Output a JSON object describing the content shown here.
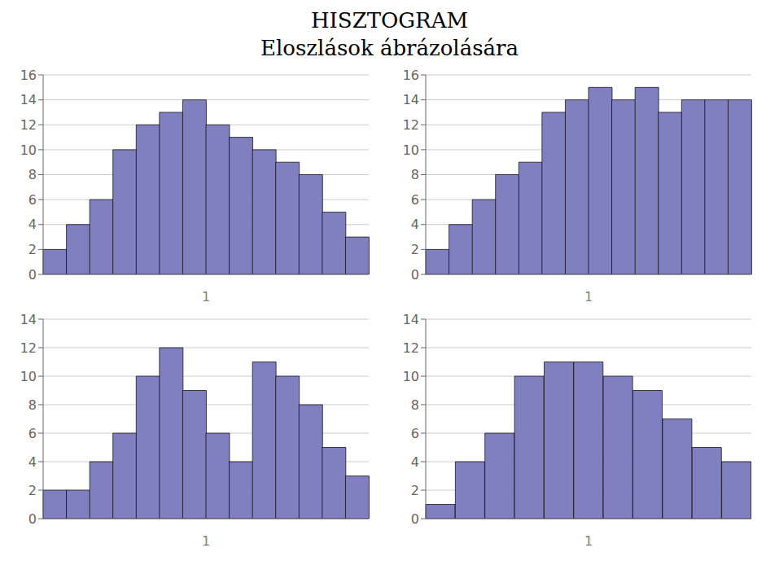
{
  "title": "HISZTOGRAM",
  "subtitle": "Eloszlások ábrázolására",
  "chart_data": [
    {
      "type": "bar",
      "categories": [
        null,
        null,
        null,
        null,
        null,
        null,
        null,
        null,
        null,
        null,
        null,
        null,
        null,
        null
      ],
      "values": [
        2,
        4,
        6,
        10,
        12,
        13,
        14,
        12,
        11,
        10,
        9,
        8,
        5,
        3
      ],
      "xlabel": "1",
      "color": "#8080C0",
      "ylim": [
        0,
        16
      ],
      "yticks": [
        0,
        2,
        4,
        6,
        8,
        10,
        12,
        14,
        16
      ],
      "grid": true,
      "tick_labels": "y"
    },
    {
      "type": "bar",
      "categories": [
        null,
        null,
        null,
        null,
        null,
        null,
        null,
        null,
        null,
        null,
        null,
        null,
        null,
        null
      ],
      "values": [
        2,
        4,
        6,
        8,
        9,
        13,
        14,
        15,
        14,
        15,
        13,
        14,
        14,
        14
      ],
      "xlabel": "1",
      "color": "#8080C0",
      "ylim": [
        0,
        16
      ],
      "yticks": [
        0,
        2,
        4,
        6,
        8,
        10,
        12,
        14,
        16
      ],
      "grid": true,
      "tick_labels": "y"
    },
    {
      "type": "bar",
      "categories": [
        null,
        null,
        null,
        null,
        null,
        null,
        null,
        null,
        null,
        null,
        null,
        null,
        null,
        null
      ],
      "values": [
        2,
        2,
        4,
        6,
        10,
        12,
        9,
        6,
        4,
        11,
        10,
        8,
        5,
        3
      ],
      "xlabel": "1",
      "color": "#8080C0",
      "ylim": [
        0,
        14
      ],
      "yticks": [
        0,
        2,
        4,
        6,
        8,
        10,
        12,
        14
      ],
      "grid": true,
      "tick_labels": "y"
    },
    {
      "type": "bar",
      "categories": [
        null,
        null,
        null,
        null,
        null,
        null,
        null,
        null,
        null,
        null,
        null
      ],
      "values": [
        1,
        4,
        6,
        10,
        11,
        11,
        10,
        9,
        7,
        5,
        4
      ],
      "xlabel": "1",
      "color": "#8080C0",
      "ylim": [
        0,
        14
      ],
      "yticks": [
        0,
        2,
        4,
        6,
        8,
        10,
        12,
        14
      ],
      "grid": true,
      "tick_labels": "y"
    }
  ]
}
